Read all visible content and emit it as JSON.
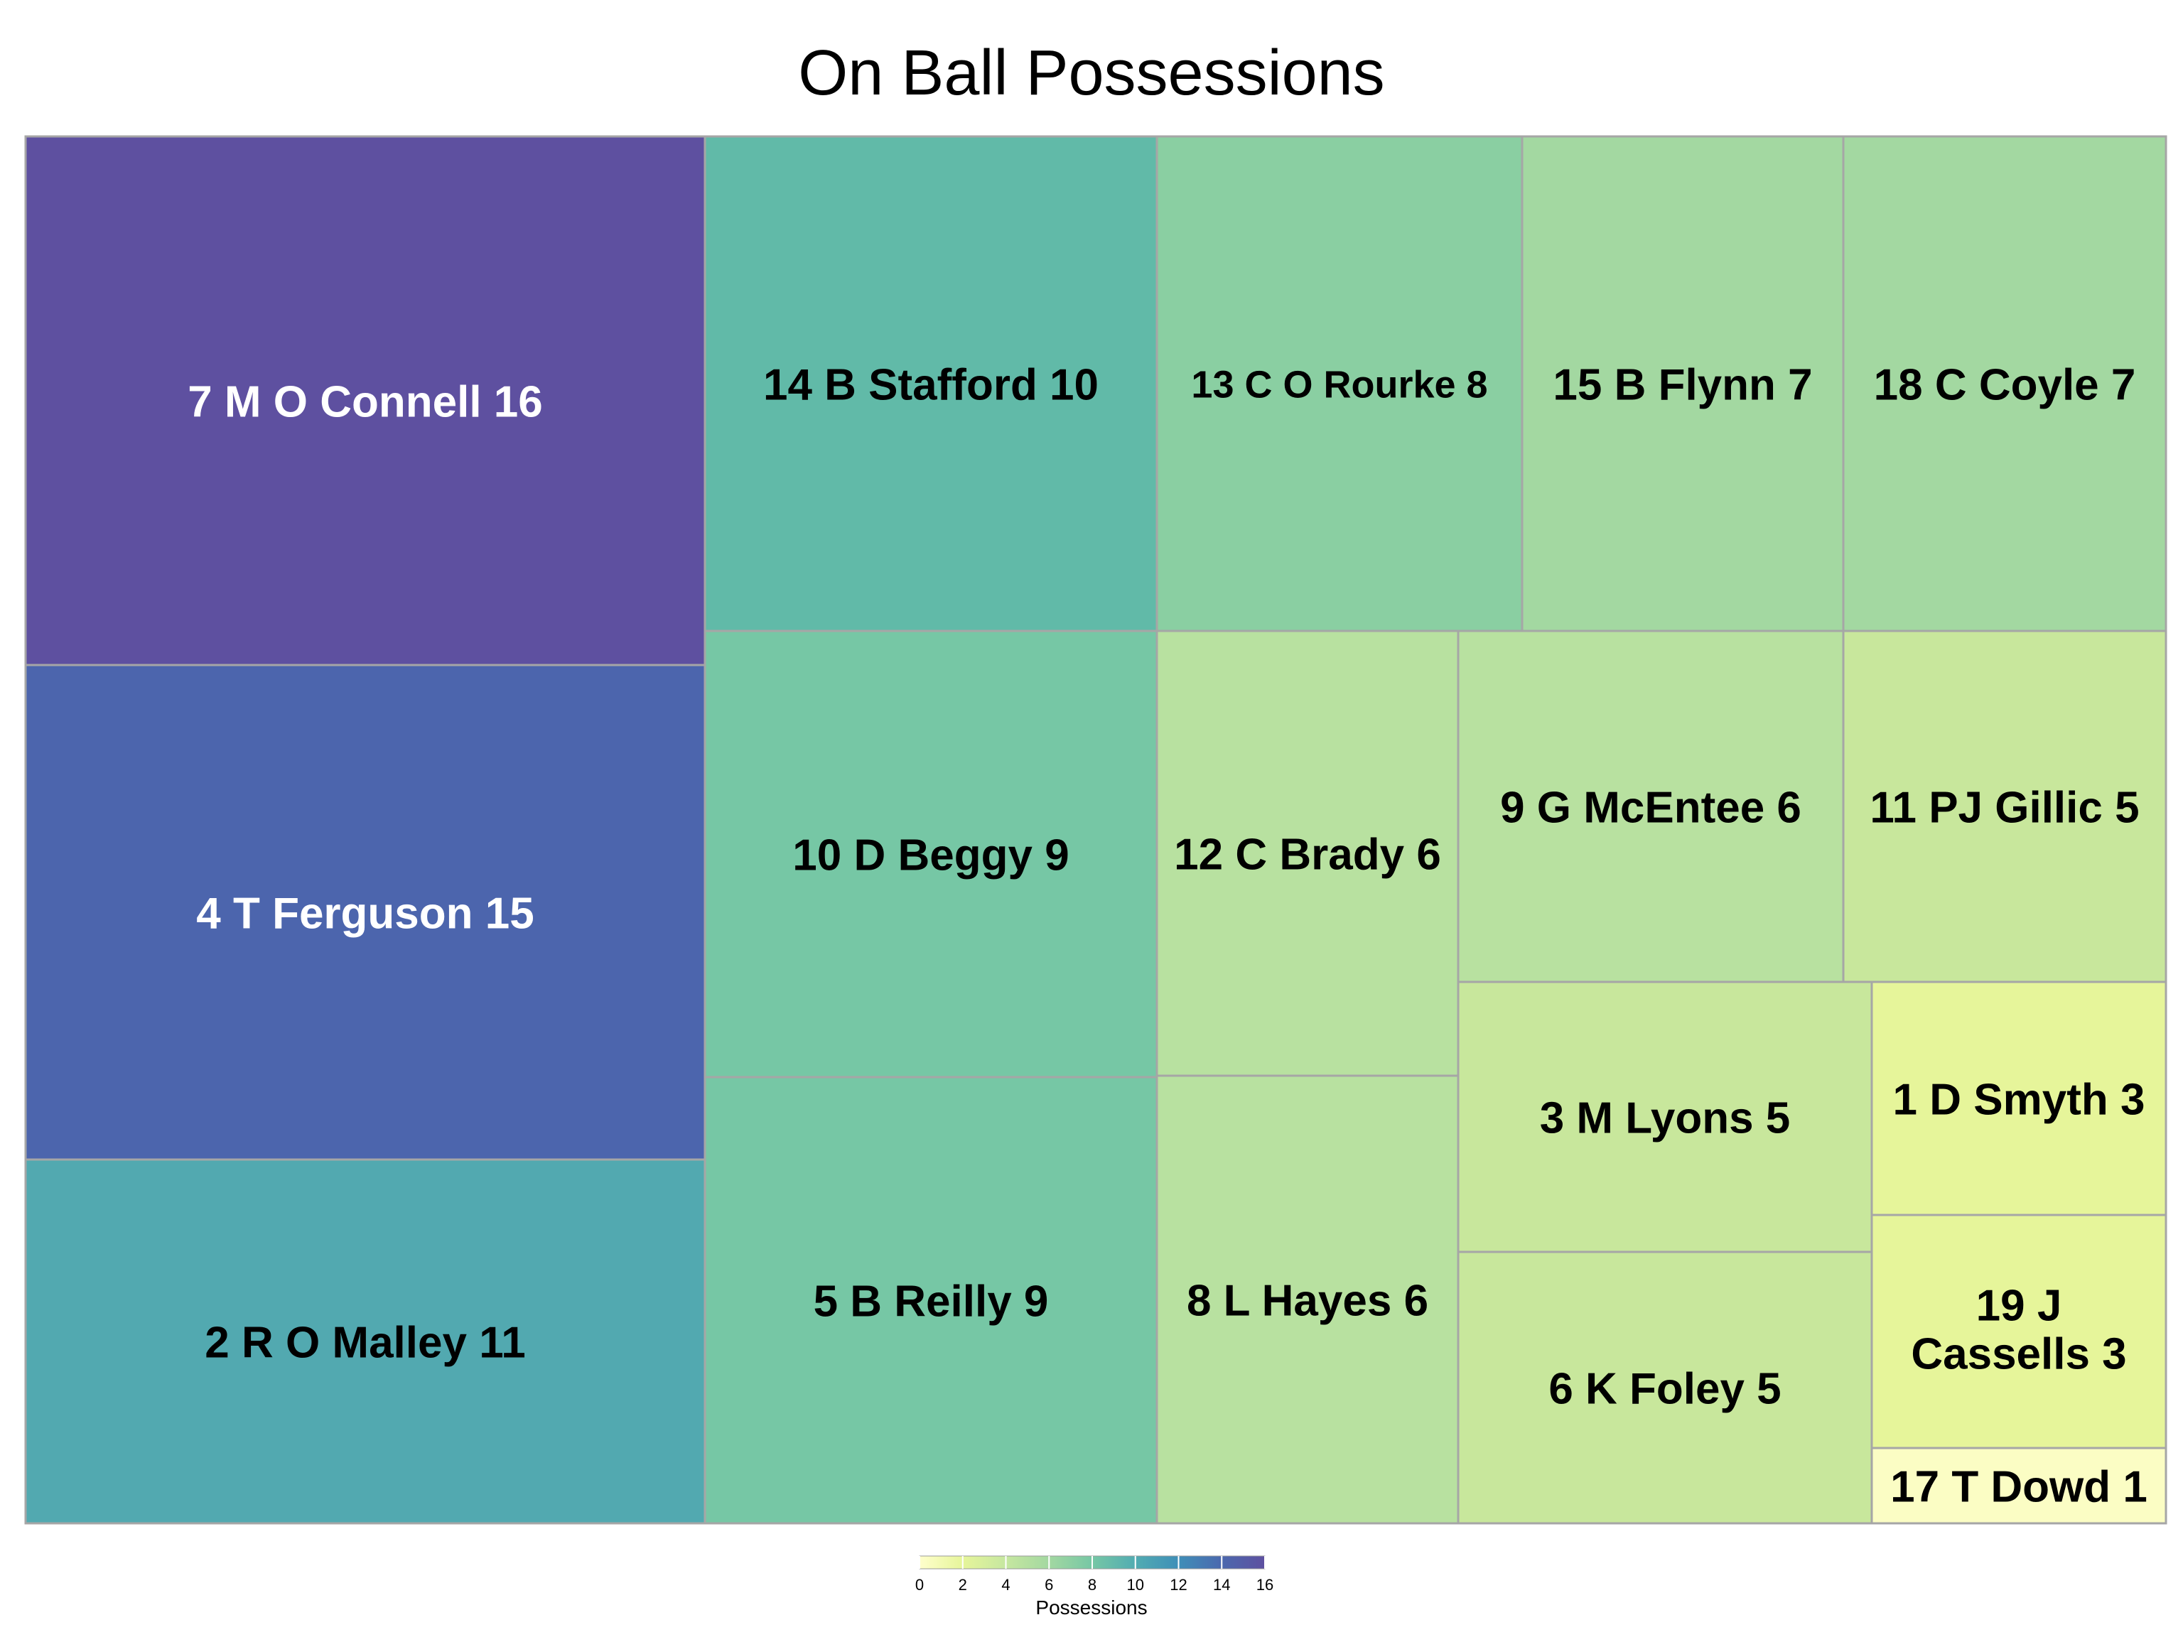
{
  "chart_data": {
    "type": "treemap",
    "title": "On Ball Possessions",
    "value_label": "Possessions",
    "color_scale": {
      "stops": [
        "#FFFFCC",
        "#E6F59A",
        "#C6E7A0",
        "#A3D8A1",
        "#76C7A5",
        "#52ACB2",
        "#3F8FB8",
        "#4B68AE",
        "#5E50A0"
      ],
      "range": [
        0,
        16
      ],
      "ticks": [
        0,
        2,
        4,
        6,
        8,
        10,
        12,
        14,
        16
      ]
    },
    "items": [
      {
        "label": "7 M O Connell 16",
        "value": 16,
        "color": "#5E50A0",
        "text_color": "#FFFFFF"
      },
      {
        "label": "4 T Ferguson 15",
        "value": 15,
        "color": "#4C65AD",
        "text_color": "#FFFFFF"
      },
      {
        "label": "2 R O Malley 11",
        "value": 11,
        "color": "#52A9B0",
        "text_color": "#000000"
      },
      {
        "label": "14 B Stafford 10",
        "value": 10,
        "color": "#61BAA8",
        "text_color": "#000000"
      },
      {
        "label": "10 D Beggy 9",
        "value": 9,
        "color": "#76C7A5",
        "text_color": "#000000"
      },
      {
        "label": "5 B Reilly 9",
        "value": 9,
        "color": "#76C7A5",
        "text_color": "#000000"
      },
      {
        "label": "13 C O Rourke 8",
        "value": 8,
        "color": "#8ACFA2",
        "text_color": "#000000"
      },
      {
        "label": "15 B Flynn 7",
        "value": 7,
        "color": "#A3D8A1",
        "text_color": "#000000"
      },
      {
        "label": "18 C Coyle 7",
        "value": 7,
        "color": "#A3D8A1",
        "text_color": "#000000"
      },
      {
        "label": "12 C Brady 6",
        "value": 6,
        "color": "#B8E1A0",
        "text_color": "#000000"
      },
      {
        "label": "8 L Hayes 6",
        "value": 6,
        "color": "#B8E1A0",
        "text_color": "#000000"
      },
      {
        "label": "9 G McEntee 6",
        "value": 6,
        "color": "#B8E1A0",
        "text_color": "#000000"
      },
      {
        "label": "11 PJ Gillic 5",
        "value": 5,
        "color": "#C8E79C",
        "text_color": "#000000"
      },
      {
        "label": "3 M Lyons 5",
        "value": 5,
        "color": "#C8E79C",
        "text_color": "#000000"
      },
      {
        "label": "6 K Foley 5",
        "value": 5,
        "color": "#C8E79C",
        "text_color": "#000000"
      },
      {
        "label": "1 D Smyth 3",
        "value": 3,
        "color": "#E6F59A",
        "text_color": "#000000"
      },
      {
        "label": "19 J Cassells 3",
        "value": 3,
        "color": "#E6F59A",
        "text_color": "#000000"
      },
      {
        "label": "17 T Dowd 1",
        "value": 1,
        "color": "#FBFDC4",
        "text_color": "#000000"
      }
    ]
  }
}
